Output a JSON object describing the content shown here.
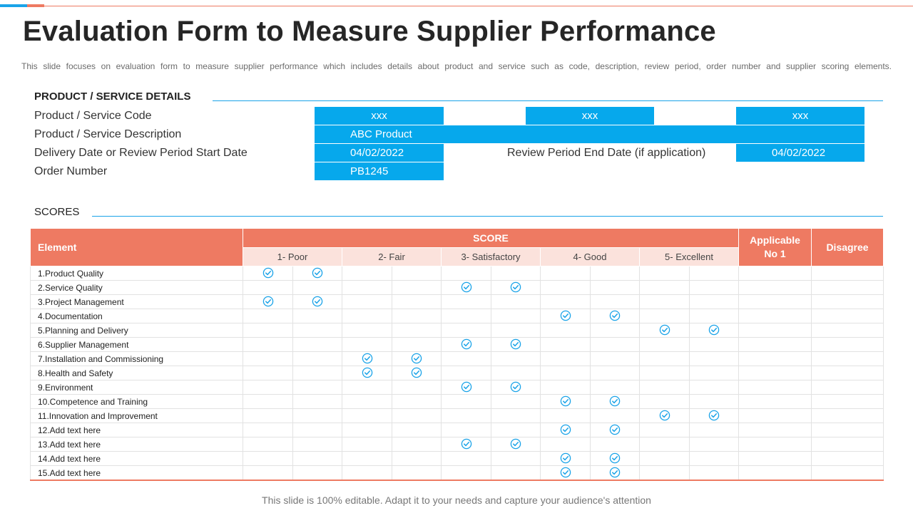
{
  "title": "Evaluation Form to Measure Supplier Performance",
  "subtitle": "This slide focuses on evaluation form to measure supplier performance which includes details about product and service such as code, description, review period, order number and supplier scoring elements.",
  "details": {
    "heading": "PRODUCT / SERVICE DETAILS",
    "code_label": "Product / Service Code",
    "codes": [
      "xxx",
      "xxx",
      "xxx"
    ],
    "description_label": "Product / Service Description",
    "description": "ABC Product",
    "start_label": "Delivery Date or Review Period Start Date",
    "start_date": "04/02/2022",
    "end_label": "Review Period End Date (if application)",
    "end_date": "04/02/2022",
    "order_label": "Order Number",
    "order_number": "PB1245"
  },
  "scores": {
    "heading": "SCORES",
    "element_header": "Element",
    "score_header": "SCORE",
    "levels": [
      "1- Poor",
      "2- Fair",
      "3- Satisfactory",
      "4- Good",
      "5- Excellent"
    ],
    "applicable_header_line1": "Applicable",
    "applicable_header_line2": "No 1",
    "disagree_header": "Disagree",
    "check_color": "#1aa3e8",
    "rows": [
      {
        "element": "1.Product Quality",
        "score": 1
      },
      {
        "element": "2.Service Quality",
        "score": 3
      },
      {
        "element": "3.Project Management",
        "score": 1
      },
      {
        "element": "4.Documentation",
        "score": 4
      },
      {
        "element": "5.Planning and Delivery",
        "score": 5
      },
      {
        "element": "6.Supplier Management",
        "score": 3
      },
      {
        "element": "7.Installation and Commissioning",
        "score": 2
      },
      {
        "element": "8.Health and Safety",
        "score": 2
      },
      {
        "element": "9.Environment",
        "score": 3
      },
      {
        "element": "10.Competence and Training",
        "score": 4
      },
      {
        "element": "11.Innovation and Improvement",
        "score": 5
      },
      {
        "element": "12.Add text here",
        "score": 4
      },
      {
        "element": "13.Add text here",
        "score": 3
      },
      {
        "element": "14.Add text here",
        "score": 4
      },
      {
        "element": "15.Add text here",
        "score": 4
      }
    ]
  },
  "footer": "This slide is 100% editable. Adapt it to your needs and capture your audience's attention"
}
